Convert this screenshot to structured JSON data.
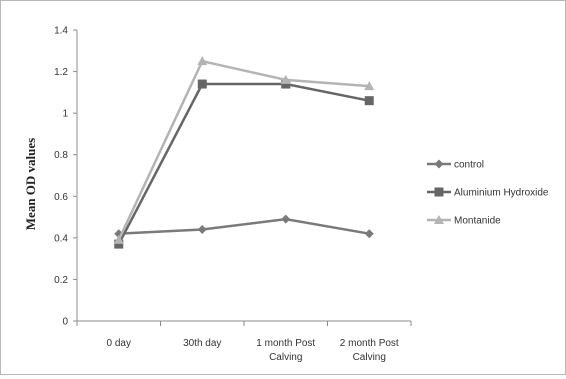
{
  "chart_data": {
    "type": "line",
    "title": "",
    "xlabel": "",
    "ylabel": "Mean OD values",
    "categories": [
      [
        "0 day"
      ],
      [
        "30th day"
      ],
      [
        "1 month Post",
        "Calving"
      ],
      [
        "2 month Post",
        "Calving"
      ]
    ],
    "ylim": [
      0,
      1.4
    ],
    "yticks": [
      0,
      0.2,
      0.4,
      0.6,
      0.8,
      1,
      1.2,
      1.4
    ],
    "grid": false,
    "legend_position": "right",
    "series": [
      {
        "name": "control",
        "values": [
          0.42,
          0.44,
          0.49,
          0.42
        ],
        "color": "#7a7a7a",
        "marker": "diamond"
      },
      {
        "name": "Aluminium Hydroxide",
        "values": [
          0.37,
          1.14,
          1.14,
          1.06
        ],
        "color": "#666666",
        "marker": "square"
      },
      {
        "name": "Montanide",
        "values": [
          0.39,
          1.25,
          1.16,
          1.13
        ],
        "color": "#b4b4b4",
        "marker": "triangle"
      }
    ]
  }
}
